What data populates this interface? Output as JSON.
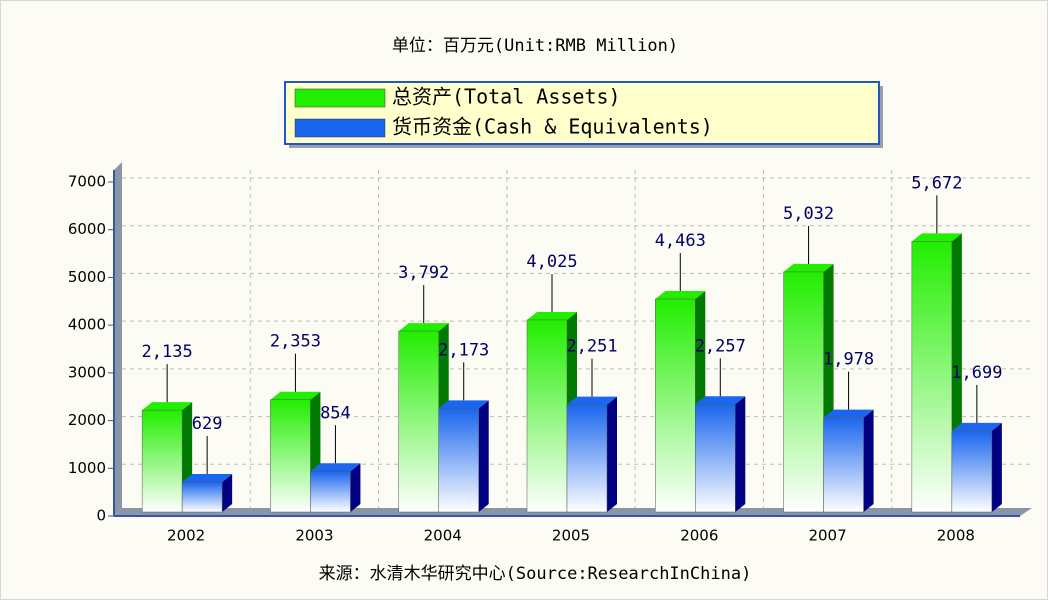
{
  "chart_data": {
    "type": "bar",
    "title": "单位：百万元(Unit:RMB Million)",
    "source": "来源：水清木华研究中心(Source:ResearchInChina)",
    "categories": [
      "2002",
      "2003",
      "2004",
      "2005",
      "2006",
      "2007",
      "2008"
    ],
    "series": [
      {
        "name": "总资产(Total Assets)",
        "color": "#22ee00",
        "side": "#007a00",
        "values": [
          2135,
          2353,
          3792,
          4025,
          4463,
          5032,
          5672
        ],
        "value_labels": [
          "2,135",
          "2,353",
          "3,792",
          "4,025",
          "4,463",
          "5,032",
          "5,672"
        ]
      },
      {
        "name": "货币资金(Cash & Equivalents)",
        "color": "#1a66ee",
        "side": "#000080",
        "values": [
          629,
          854,
          2173,
          2251,
          2257,
          1978,
          1699
        ],
        "value_labels": [
          "629",
          "854",
          "2,173",
          "2,251",
          "2,257",
          "1,978",
          "1,699"
        ]
      }
    ],
    "ylim": [
      0,
      7000
    ],
    "yticks": [
      0,
      1000,
      2000,
      3000,
      4000,
      5000,
      6000,
      7000
    ],
    "grid": true,
    "legend": "top"
  }
}
